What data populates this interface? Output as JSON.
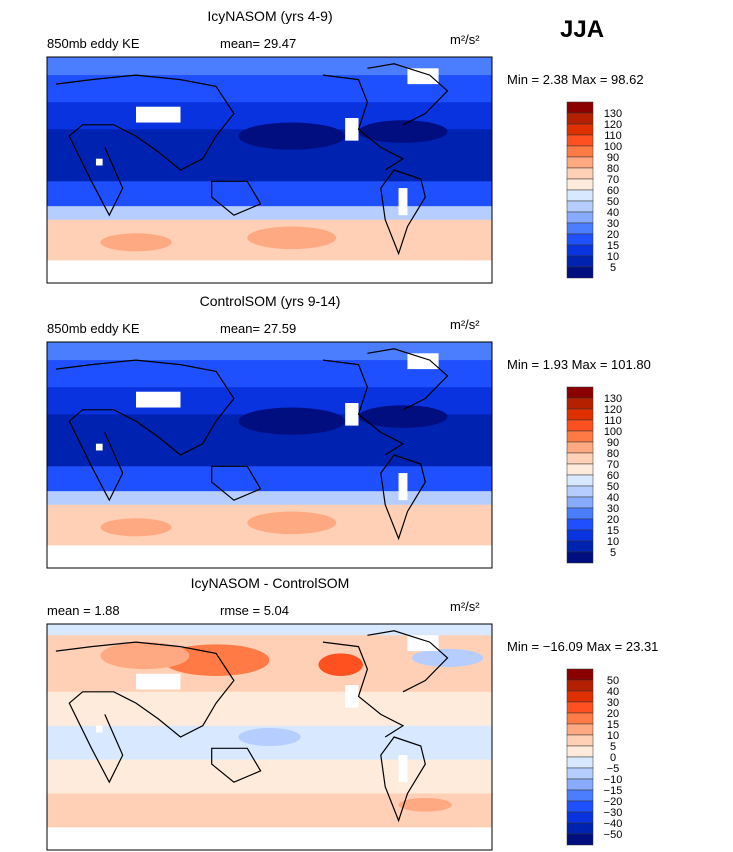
{
  "season_label": "JJA",
  "unit": "m²/s²",
  "colors_ke": [
    "#000e80",
    "#0022b0",
    "#0a33e0",
    "#1e50ff",
    "#4a7dff",
    "#88aaff",
    "#b6cdff",
    "#d8e9ff",
    "#ffebdc",
    "#ffd0b6",
    "#ffa982",
    "#ff7a45",
    "#ff5020",
    "#e03000",
    "#b52000",
    "#8b0000"
  ],
  "chart_data": [
    {
      "type": "heatmap",
      "title": "IcyNASOM (yrs 4-9)",
      "subtitle": "850mb eddy KE",
      "stat_label": "mean=",
      "stat_value": "29.47",
      "unit_label": "m²/s²",
      "min_label": "Min =",
      "min": "2.38",
      "max_label": "Max =",
      "max": "98.62",
      "levels": [
        "5",
        "10",
        "15",
        "20",
        "30",
        "40",
        "50",
        "60",
        "70",
        "80",
        "90",
        "100",
        "110",
        "120",
        "130"
      ]
    },
    {
      "type": "heatmap",
      "title": "ControlSOM (yrs 9-14)",
      "subtitle": "850mb eddy KE",
      "stat_label": "mean=",
      "stat_value": "27.59",
      "unit_label": "m²/s²",
      "min_label": "Min =",
      "min": "1.93",
      "max_label": "Max =",
      "max": "101.80",
      "levels": [
        "5",
        "10",
        "15",
        "20",
        "30",
        "40",
        "50",
        "60",
        "70",
        "80",
        "90",
        "100",
        "110",
        "120",
        "130"
      ]
    },
    {
      "type": "heatmap",
      "title": "IcyNASOM - ControlSOM",
      "subtitle": "mean =   1.88",
      "stat_label": "rmse =",
      "stat_value": "5.04",
      "unit_label": "m²/s²",
      "min_label": "Min =",
      "min": "−16.09",
      "max_label": "Max =",
      "max": "23.31",
      "levels": [
        "−50",
        "−40",
        "−30",
        "−20",
        "−15",
        "−10",
        "−5",
        "0",
        "5",
        "10",
        "15",
        "20",
        "30",
        "40",
        "50"
      ]
    }
  ]
}
